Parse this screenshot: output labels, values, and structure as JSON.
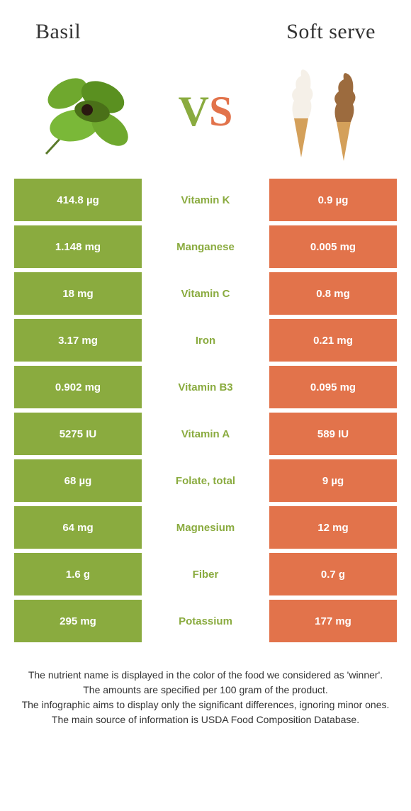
{
  "left_title": "Basil",
  "right_title": "Soft serve",
  "colors": {
    "green": "#8aab3f",
    "orange": "#e2734b",
    "mid_text_green": "#8aab3f",
    "mid_text_orange": "#e2734b"
  },
  "rows": [
    {
      "nutrient": "Vitamin K",
      "left": "414.8 µg",
      "right": "0.9 µg",
      "winner": "left"
    },
    {
      "nutrient": "Manganese",
      "left": "1.148 mg",
      "right": "0.005 mg",
      "winner": "left"
    },
    {
      "nutrient": "Vitamin C",
      "left": "18 mg",
      "right": "0.8 mg",
      "winner": "left"
    },
    {
      "nutrient": "Iron",
      "left": "3.17 mg",
      "right": "0.21 mg",
      "winner": "left"
    },
    {
      "nutrient": "Vitamin B3",
      "left": "0.902 mg",
      "right": "0.095 mg",
      "winner": "left"
    },
    {
      "nutrient": "Vitamin A",
      "left": "5275 IU",
      "right": "589 IU",
      "winner": "left"
    },
    {
      "nutrient": "Folate, total",
      "left": "68 µg",
      "right": "9 µg",
      "winner": "left"
    },
    {
      "nutrient": "Magnesium",
      "left": "64 mg",
      "right": "12 mg",
      "winner": "left"
    },
    {
      "nutrient": "Fiber",
      "left": "1.6 g",
      "right": "0.7 g",
      "winner": "left"
    },
    {
      "nutrient": "Potassium",
      "left": "295 mg",
      "right": "177 mg",
      "winner": "left"
    }
  ],
  "footnote": [
    "The nutrient name is displayed in the color of the food we considered as 'winner'.",
    "The amounts are specified per 100 gram of the product.",
    "The infographic aims to display only the significant differences, ignoring minor ones.",
    "The main source of information is USDA Food Composition Database."
  ]
}
